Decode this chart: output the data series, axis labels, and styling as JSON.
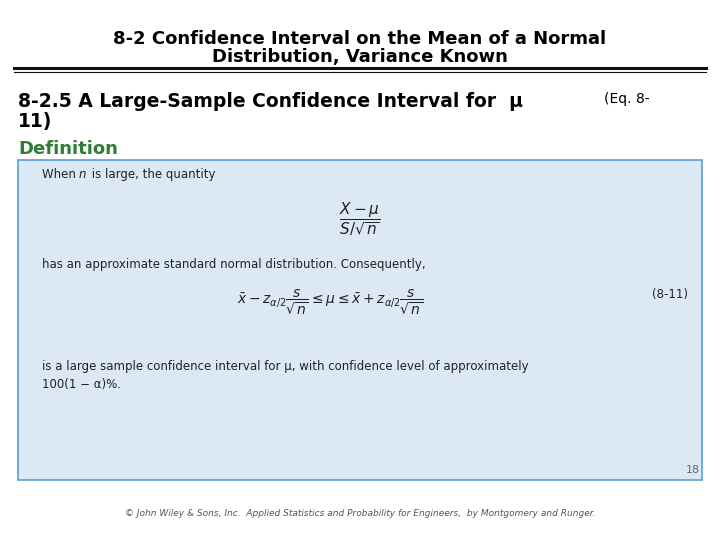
{
  "title_line1": "8-2 Confidence Interval on the Mean of a Normal",
  "title_line2": "Distribution, Variance Known",
  "section_title_main": "8-2.5 A Large-Sample Confidence Interval for  μ",
  "section_title_eq": "(Eq. 8-",
  "section_title_eq2": "11)",
  "definition_label": "Definition",
  "box_text_line1_a": "When ",
  "box_text_line1_b": "n",
  "box_text_line1_c": " is large, the quantity",
  "box_formula1": "$\\dfrac{X - \\mu}{S/\\sqrt{n}}$",
  "box_text_line2": "has an approximate standard normal distribution. Consequently,",
  "box_formula2": "$\\bar{x} - z_{\\alpha/2} \\dfrac{s}{\\sqrt{n}} \\leq \\mu \\leq \\bar{x} + z_{\\alpha/2} \\dfrac{s}{\\sqrt{n}}$",
  "box_eq_label": "(8-11)",
  "box_text_line3": "is a large sample confidence interval for μ, with confidence level of approximately",
  "box_text_line4": "100(1 − α)%.",
  "footer_text": "© John Wiley & Sons, Inc.  Applied Statistics and Probability for Engineers,  by Montgomery and Runger.",
  "page_number": "18",
  "title_color": "#000000",
  "section_color": "#000000",
  "definition_color": "#2e7d32",
  "box_bg_color": "#dce9f5",
  "box_border_color": "#5a9fd4",
  "footer_color": "#555555",
  "bg_color": "#ffffff"
}
